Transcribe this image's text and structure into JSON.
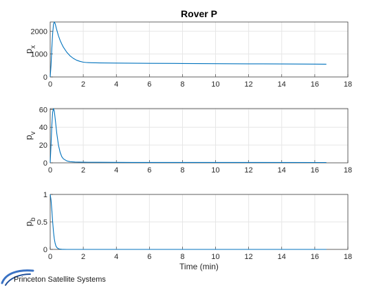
{
  "chart_data": [
    {
      "type": "line",
      "title": "Rover P",
      "xlabel": "",
      "ylabel": "p",
      "ylabel_sub": "x",
      "xlim": [
        0,
        18
      ],
      "ylim": [
        0,
        2400
      ],
      "xticks": [
        "0",
        "2",
        "4",
        "6",
        "8",
        "10",
        "12",
        "14",
        "16",
        "18"
      ],
      "yticks": [
        "0",
        "1000",
        "2000"
      ],
      "ytick_values": [
        0,
        1000,
        2000
      ],
      "grid": true,
      "series": [
        {
          "color": "#0072BD",
          "x": [
            0,
            0.05,
            0.1,
            0.15,
            0.2,
            0.25,
            0.3,
            0.4,
            0.5,
            0.6,
            0.7,
            0.8,
            1.0,
            1.2,
            1.4,
            1.6,
            1.8,
            2.0,
            2.2,
            2.5,
            3.0,
            4.0,
            6.0,
            8.0,
            10.0,
            12.0,
            14.0,
            16.0,
            16.7
          ],
          "y": [
            0,
            500,
            1250,
            1900,
            2300,
            2400,
            2330,
            2050,
            1800,
            1600,
            1440,
            1300,
            1080,
            920,
            810,
            730,
            680,
            645,
            630,
            620,
            612,
            605,
            595,
            588,
            580,
            574,
            566,
            560,
            557
          ]
        }
      ]
    },
    {
      "type": "line",
      "title": "",
      "xlabel": "",
      "ylabel": "p",
      "ylabel_sub": "v",
      "xlim": [
        0,
        18
      ],
      "ylim": [
        0,
        61
      ],
      "xticks": [
        "0",
        "2",
        "4",
        "6",
        "8",
        "10",
        "12",
        "14",
        "16",
        "18"
      ],
      "yticks": [
        "0",
        "20",
        "40",
        "60"
      ],
      "ytick_values": [
        0,
        20,
        40,
        60
      ],
      "grid": true,
      "series": [
        {
          "color": "#0072BD",
          "x": [
            0,
            0.05,
            0.1,
            0.15,
            0.2,
            0.25,
            0.3,
            0.4,
            0.5,
            0.6,
            0.7,
            0.8,
            1.0,
            1.2,
            1.5,
            2.0,
            3.0,
            5.0,
            10.0,
            16.7
          ],
          "y": [
            0,
            20,
            42,
            57,
            61,
            58,
            50,
            33,
            20,
            12,
            7,
            4.5,
            2.2,
            1.3,
            0.9,
            0.7,
            0.6,
            0.5,
            0.45,
            0.4
          ]
        }
      ]
    },
    {
      "type": "line",
      "title": "",
      "xlabel": "Time (min)",
      "ylabel": "p",
      "ylabel_sub": "b",
      "xlim": [
        0,
        18
      ],
      "ylim": [
        0,
        1
      ],
      "xticks": [
        "0",
        "2",
        "4",
        "6",
        "8",
        "10",
        "12",
        "14",
        "16",
        "18"
      ],
      "yticks": [
        "0",
        "0.5",
        "1"
      ],
      "ytick_values": [
        0,
        0.5,
        1
      ],
      "grid": true,
      "series": [
        {
          "color": "#0072BD",
          "x": [
            0,
            0.05,
            0.1,
            0.15,
            0.2,
            0.25,
            0.3,
            0.35,
            0.4,
            0.5,
            0.6,
            0.7,
            0.8,
            1.0,
            2.0,
            5.0,
            10.0,
            16.7
          ],
          "y": [
            1,
            0.9,
            0.72,
            0.5,
            0.32,
            0.19,
            0.11,
            0.06,
            0.035,
            0.012,
            0.005,
            0.002,
            0.001,
            0,
            0,
            0,
            0,
            0
          ]
        }
      ]
    }
  ],
  "logo": {
    "text": "Princeton Satellite Systems"
  }
}
